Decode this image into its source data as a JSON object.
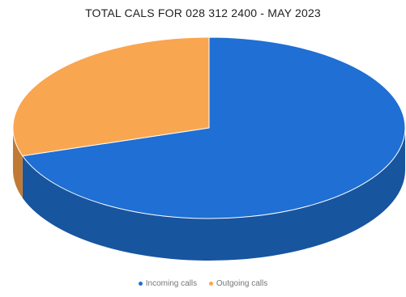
{
  "chart_data": {
    "type": "pie",
    "title": "TOTAL CALS FOR 028 312 2400 - MAY 2023",
    "categories": [
      "Incoming calls",
      "Outgoing calls"
    ],
    "values": [
      70,
      30
    ],
    "colors": [
      "#1f6fd4",
      "#f9a650"
    ],
    "side_colors": [
      "#17559f",
      "#c07a35"
    ],
    "legend_position": "bottom",
    "style": "3d"
  }
}
